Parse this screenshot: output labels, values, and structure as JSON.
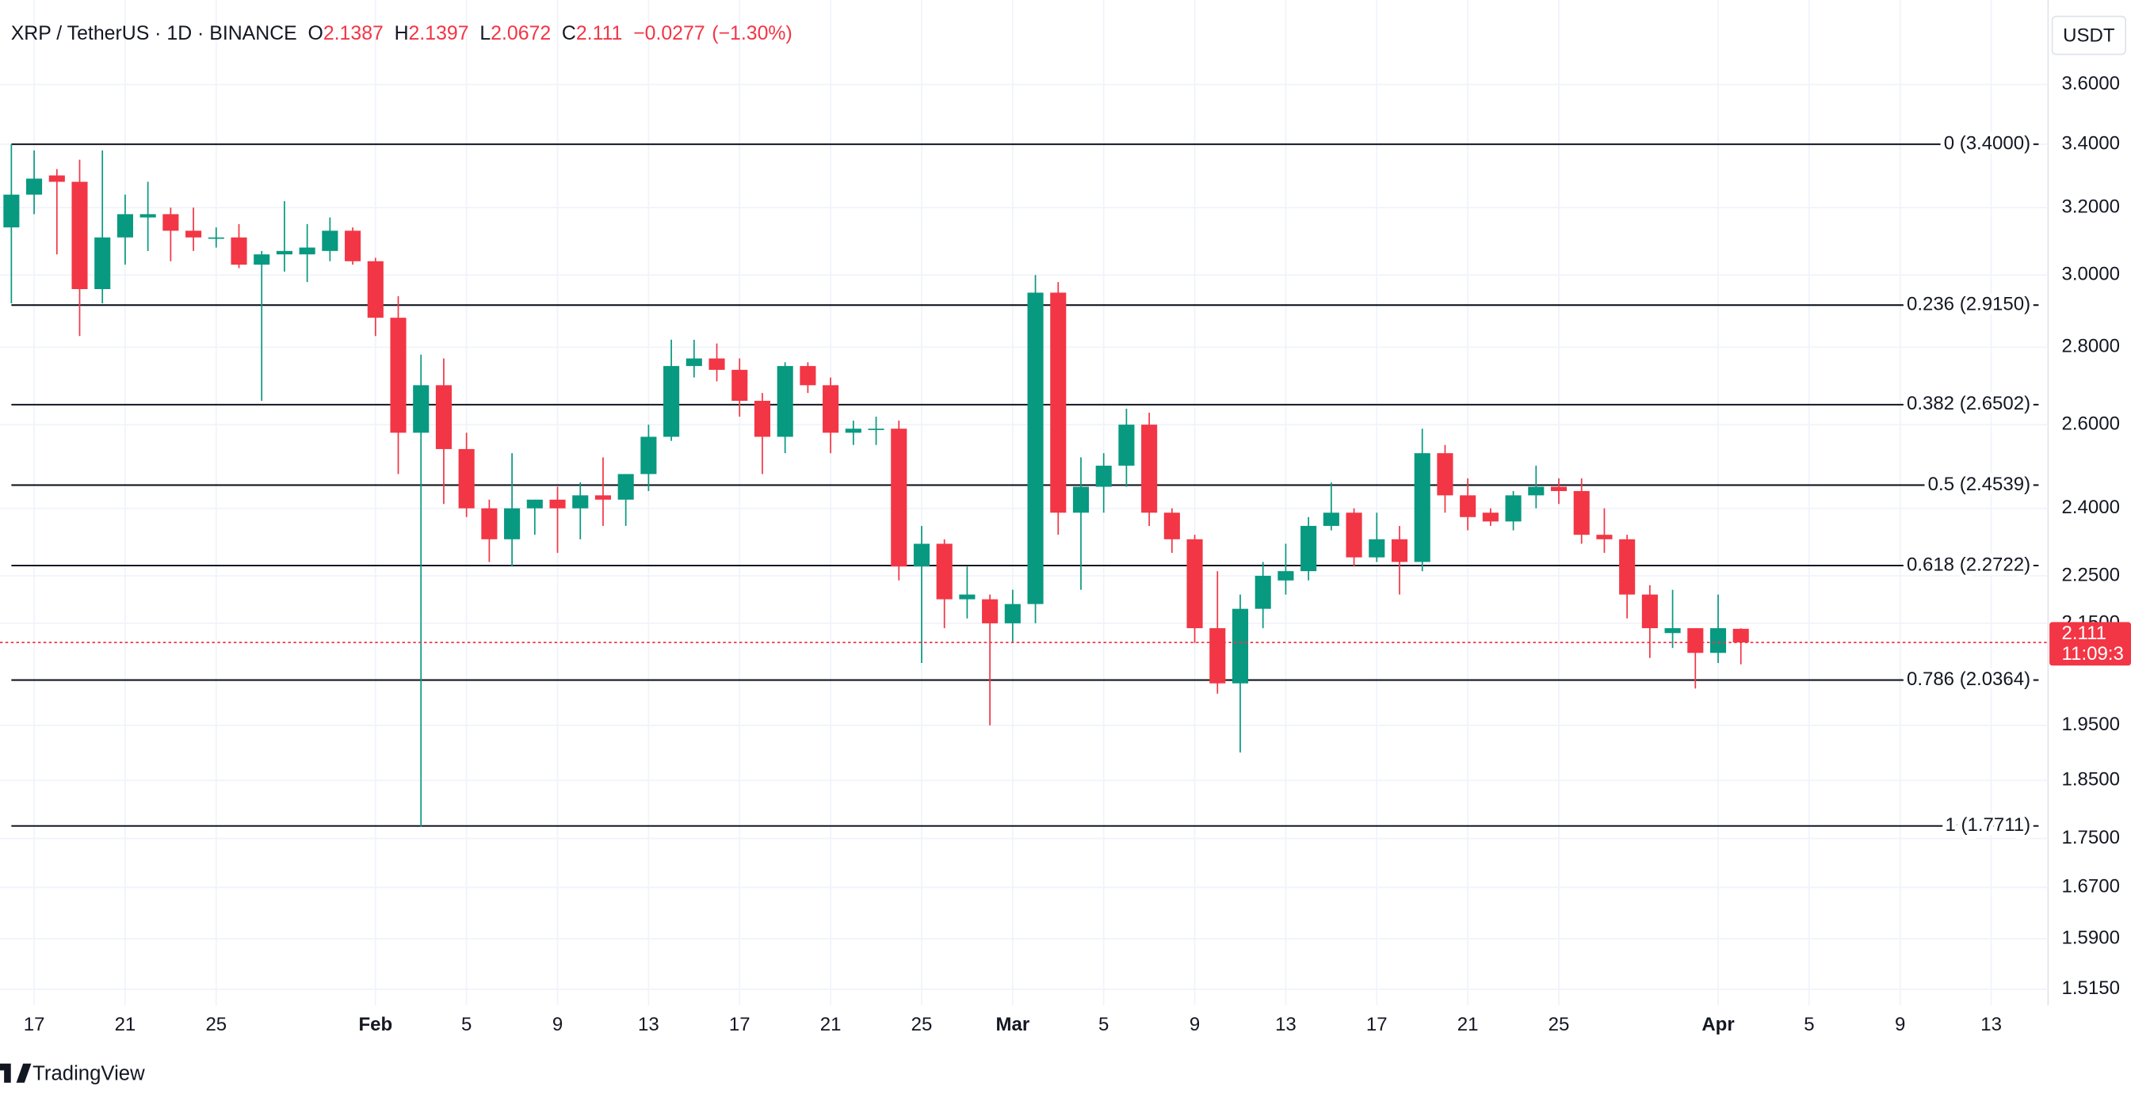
{
  "chart_data": {
    "type": "candlestick",
    "title": "XRP / TetherUS · 1D · BINANCE",
    "currency": "USDT",
    "brand": "TradingView",
    "header_labels": {
      "open": "O",
      "high": "H",
      "low": "L",
      "close": "C"
    },
    "change": {
      "value": -0.0277,
      "label": "−0.0277"
    },
    "change_percent": {
      "value": -1.3,
      "label": "(−1.30%)"
    },
    "countdown": "11:09:3",
    "up_color": "#089981",
    "down_color": "#f23645",
    "fib_color": "#131722",
    "log_scale": true,
    "grid": true,
    "categories": [
      null,
      "17",
      null,
      null,
      null,
      "21",
      null,
      null,
      null,
      "25",
      null,
      null,
      null,
      null,
      null,
      null,
      "Feb",
      null,
      null,
      null,
      "5",
      null,
      null,
      null,
      "9",
      null,
      null,
      null,
      "13",
      null,
      null,
      null,
      "17",
      null,
      null,
      null,
      "21",
      null,
      null,
      null,
      "25",
      null,
      null,
      null,
      "Mar",
      null,
      null,
      null,
      "5",
      null,
      null,
      null,
      "9",
      null,
      null,
      null,
      "13",
      null,
      null,
      null,
      "17",
      null,
      null,
      null,
      "21",
      null,
      null,
      null,
      "25",
      null,
      null,
      null,
      null,
      null,
      null,
      "Apr",
      null,
      null,
      null,
      "5",
      null,
      null,
      null,
      "9",
      null,
      null,
      null,
      "13",
      null,
      null
    ],
    "open": [
      3.14,
      3.24,
      3.3,
      3.28,
      2.96,
      3.11,
      3.17,
      3.18,
      3.13,
      3.11,
      3.11,
      3.03,
      3.06,
      3.06,
      3.07,
      3.13,
      3.04,
      2.88,
      2.58,
      2.7,
      2.54,
      2.4,
      2.33,
      2.4,
      2.42,
      2.4,
      2.43,
      2.42,
      2.48,
      2.57,
      2.75,
      2.77,
      2.74,
      2.66,
      2.57,
      2.75,
      2.7,
      2.58,
      2.59,
      2.59,
      2.27,
      2.32,
      2.2,
      2.2,
      2.15,
      2.19,
      2.95,
      2.39,
      2.45,
      2.5,
      2.6,
      2.39,
      2.33,
      2.14,
      2.03,
      2.18,
      2.24,
      2.26,
      2.36,
      2.39,
      2.29,
      2.33,
      2.28,
      2.53,
      2.43,
      2.39,
      2.37,
      2.43,
      2.45,
      2.44,
      2.34,
      2.33,
      2.21,
      2.13,
      2.14,
      2.09,
      2.1387,
      null,
      null,
      null,
      null,
      null,
      null,
      null,
      null,
      null,
      null,
      null,
      null,
      null
    ],
    "high": [
      3.4,
      3.38,
      3.32,
      3.35,
      3.38,
      3.24,
      3.28,
      3.2,
      3.2,
      3.14,
      3.15,
      3.07,
      3.22,
      3.15,
      3.17,
      3.14,
      3.05,
      2.94,
      2.78,
      2.77,
      2.58,
      2.42,
      2.53,
      2.42,
      2.45,
      2.46,
      2.52,
      2.47,
      2.6,
      2.82,
      2.82,
      2.81,
      2.77,
      2.68,
      2.76,
      2.76,
      2.72,
      2.61,
      2.62,
      2.61,
      2.36,
      2.33,
      2.27,
      2.21,
      2.22,
      3.0,
      2.98,
      2.52,
      2.53,
      2.64,
      2.63,
      2.4,
      2.34,
      2.26,
      2.21,
      2.28,
      2.32,
      2.38,
      2.46,
      2.4,
      2.39,
      2.36,
      2.59,
      2.55,
      2.47,
      2.4,
      2.44,
      2.5,
      2.47,
      2.47,
      2.4,
      2.34,
      2.23,
      2.22,
      2.14,
      2.21,
      2.1397,
      null,
      null,
      null,
      null,
      null,
      null,
      null,
      null,
      null,
      null,
      null,
      null,
      null
    ],
    "low": [
      2.92,
      3.18,
      3.06,
      2.83,
      2.92,
      3.03,
      3.07,
      3.04,
      3.07,
      3.08,
      3.02,
      2.66,
      3.01,
      2.98,
      3.04,
      3.03,
      2.83,
      2.48,
      1.77,
      2.41,
      2.38,
      2.28,
      2.27,
      2.34,
      2.3,
      2.33,
      2.36,
      2.36,
      2.44,
      2.56,
      2.72,
      2.71,
      2.62,
      2.48,
      2.53,
      2.68,
      2.53,
      2.55,
      2.55,
      2.24,
      2.07,
      2.14,
      2.16,
      1.95,
      2.11,
      2.15,
      2.34,
      2.22,
      2.39,
      2.45,
      2.36,
      2.3,
      2.11,
      2.01,
      1.9,
      2.14,
      2.21,
      2.24,
      2.35,
      2.27,
      2.28,
      2.21,
      2.26,
      2.39,
      2.35,
      2.36,
      2.35,
      2.4,
      2.41,
      2.32,
      2.3,
      2.16,
      2.08,
      2.1,
      2.02,
      2.07,
      2.0672,
      null,
      null,
      null,
      null,
      null,
      null,
      null,
      null,
      null,
      null,
      null,
      null,
      null
    ],
    "close": [
      3.24,
      3.29,
      3.28,
      2.96,
      3.11,
      3.18,
      3.18,
      3.13,
      3.11,
      3.11,
      3.03,
      3.06,
      3.07,
      3.08,
      3.13,
      3.04,
      2.88,
      2.58,
      2.7,
      2.54,
      2.4,
      2.33,
      2.4,
      2.42,
      2.4,
      2.43,
      2.42,
      2.48,
      2.57,
      2.75,
      2.77,
      2.74,
      2.66,
      2.57,
      2.75,
      2.7,
      2.58,
      2.59,
      2.59,
      2.27,
      2.32,
      2.2,
      2.21,
      2.15,
      2.19,
      2.95,
      2.39,
      2.45,
      2.5,
      2.6,
      2.39,
      2.33,
      2.14,
      2.03,
      2.18,
      2.25,
      2.26,
      2.36,
      2.39,
      2.29,
      2.33,
      2.28,
      2.53,
      2.43,
      2.38,
      2.37,
      2.43,
      2.45,
      2.44,
      2.34,
      2.33,
      2.21,
      2.14,
      2.14,
      2.09,
      2.14,
      2.111,
      null,
      null,
      null,
      null,
      null,
      null,
      null,
      null,
      null,
      null,
      null,
      null,
      null
    ],
    "ylim": [
      1.492,
      3.903
    ],
    "yticks": [
      {
        "value": 3.6,
        "label": "3.6000"
      },
      {
        "value": 3.4,
        "label": "3.4000"
      },
      {
        "value": 3.2,
        "label": "3.2000"
      },
      {
        "value": 3.0,
        "label": "3.0000"
      },
      {
        "value": 2.8,
        "label": "2.8000"
      },
      {
        "value": 2.6,
        "label": "2.6000"
      },
      {
        "value": 2.4,
        "label": "2.4000"
      },
      {
        "value": 2.25,
        "label": "2.2500"
      },
      {
        "value": 2.15,
        "label": "2.1500"
      },
      {
        "value": 1.95,
        "label": "1.9500"
      },
      {
        "value": 1.85,
        "label": "1.8500"
      },
      {
        "value": 1.75,
        "label": "1.7500"
      },
      {
        "value": 1.67,
        "label": "1.6700"
      },
      {
        "value": 1.59,
        "label": "1.5900"
      },
      {
        "value": 1.515,
        "label": "1.5150"
      }
    ],
    "fib_levels": [
      {
        "value": 3.4,
        "label": "0 (3.4000)"
      },
      {
        "value": 2.915,
        "label": "0.236 (2.9150)"
      },
      {
        "value": 2.6502,
        "label": "0.382 (2.6502)"
      },
      {
        "value": 2.4539,
        "label": "0.5 (2.4539)"
      },
      {
        "value": 2.2722,
        "label": "0.618 (2.2722)"
      },
      {
        "value": 2.0364,
        "label": "0.786 (2.0364)"
      },
      {
        "value": 1.7711,
        "label": "1 (1.7711)"
      }
    ]
  }
}
